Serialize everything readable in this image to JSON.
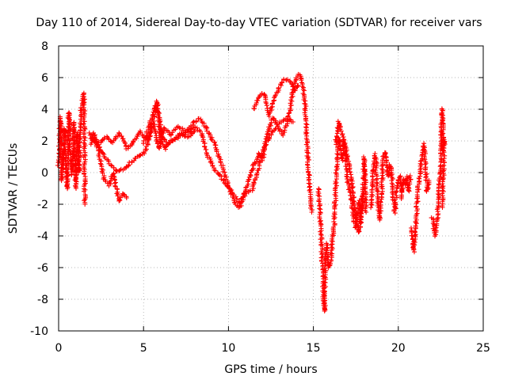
{
  "chart_data": {
    "type": "scatter",
    "title": "Day 110 of 2014, Sidereal Day-to-day VTEC variation (SDTVAR) for receiver vars",
    "xlabel": "GPS time / hours",
    "ylabel": "SDTVAR / TECUs",
    "xlim": [
      0,
      25
    ],
    "ylim": [
      -10,
      8
    ],
    "xticks": [
      0,
      5,
      10,
      15,
      20,
      25
    ],
    "yticks": [
      -10,
      -8,
      -6,
      -4,
      -2,
      0,
      2,
      4,
      6,
      8
    ],
    "xtick_labels": [
      "0",
      "5",
      "10",
      "15",
      "20",
      "25"
    ],
    "ytick_labels": [
      "-10",
      "-8",
      "-6",
      "-4",
      "-2",
      "0",
      "2",
      "4",
      "6",
      "8"
    ],
    "grid": true,
    "marker": "+",
    "marker_color": "#ff0000",
    "series": [
      {
        "name": "vars",
        "segments": [
          [
            [
              0.0,
              0.5
            ],
            [
              0.1,
              3.5
            ],
            [
              0.2,
              -0.5
            ],
            [
              0.35,
              2.8
            ],
            [
              0.5,
              -1.0
            ],
            [
              0.6,
              3.8
            ],
            [
              0.7,
              1.0
            ],
            [
              0.8,
              -0.2
            ],
            [
              0.9,
              3.2
            ],
            [
              1.0,
              -1.0
            ],
            [
              1.1,
              2.5
            ],
            [
              1.2,
              0.0
            ],
            [
              1.3,
              3.5
            ],
            [
              1.4,
              4.5
            ],
            [
              1.5,
              5.0
            ],
            [
              1.55,
              -2.0
            ]
          ],
          [
            [
              1.9,
              1.8
            ],
            [
              2.1,
              2.5
            ],
            [
              2.4,
              1.0
            ],
            [
              2.7,
              -0.5
            ],
            [
              3.0,
              -0.8
            ],
            [
              3.2,
              0.0
            ],
            [
              3.4,
              -1.0
            ],
            [
              3.6,
              -1.8
            ],
            [
              3.8,
              -1.3
            ],
            [
              4.0,
              -1.6
            ]
          ],
          [
            [
              1.9,
              2.2
            ],
            [
              2.3,
              1.8
            ],
            [
              2.8,
              2.3
            ],
            [
              3.2,
              1.9
            ],
            [
              3.6,
              2.5
            ],
            [
              4.0,
              1.5
            ],
            [
              4.4,
              1.9
            ],
            [
              4.8,
              2.6
            ],
            [
              5.2,
              2.1
            ],
            [
              5.6,
              3.0
            ],
            [
              5.9,
              1.5
            ],
            [
              6.2,
              2.8
            ],
            [
              6.6,
              2.4
            ],
            [
              7.0,
              2.9
            ],
            [
              7.5,
              2.6
            ],
            [
              8.0,
              3.2
            ],
            [
              8.3,
              3.4
            ],
            [
              8.6,
              3.0
            ],
            [
              9.0,
              2.2
            ],
            [
              9.3,
              1.5
            ],
            [
              9.6,
              0.5
            ],
            [
              9.9,
              -0.5
            ],
            [
              10.2,
              -1.5
            ],
            [
              10.5,
              -2.1
            ],
            [
              10.7,
              -2.2
            ],
            [
              10.9,
              -1.5
            ],
            [
              11.2,
              -0.5
            ],
            [
              11.5,
              0.5
            ],
            [
              11.8,
              1.2
            ],
            [
              12.0,
              0.8
            ],
            [
              12.3,
              2.5
            ],
            [
              12.6,
              3.5
            ],
            [
              12.9,
              3.0
            ],
            [
              13.2,
              3.3
            ],
            [
              13.5,
              3.4
            ],
            [
              13.8,
              3.2
            ]
          ],
          [
            [
              1.8,
              2.5
            ],
            [
              2.2,
              2.0
            ],
            [
              2.6,
              1.2
            ],
            [
              3.0,
              0.6
            ],
            [
              3.4,
              0.1
            ],
            [
              3.8,
              0.2
            ],
            [
              4.2,
              0.6
            ],
            [
              4.6,
              1.0
            ],
            [
              5.0,
              1.2
            ],
            [
              5.2,
              1.6
            ],
            [
              5.6,
              3.5
            ],
            [
              5.8,
              4.5
            ],
            [
              6.0,
              2.0
            ],
            [
              6.3,
              1.5
            ],
            [
              6.6,
              2.0
            ],
            [
              7.0,
              2.2
            ],
            [
              7.5,
              2.5
            ],
            [
              8.0,
              2.9
            ],
            [
              8.4,
              2.5
            ],
            [
              8.8,
              1.0
            ],
            [
              9.2,
              0.2
            ],
            [
              9.5,
              -0.2
            ],
            [
              9.9,
              -0.8
            ],
            [
              10.2,
              -1.2
            ],
            [
              10.6,
              -1.9
            ],
            [
              11.0,
              -1.4
            ],
            [
              11.4,
              -1.1
            ],
            [
              11.7,
              0.0
            ],
            [
              12.0,
              1.2
            ],
            [
              12.3,
              2.0
            ],
            [
              12.6,
              2.6
            ],
            [
              12.9,
              2.9
            ],
            [
              13.2,
              2.4
            ],
            [
              13.5,
              3.3
            ],
            [
              13.7,
              4.5
            ],
            [
              13.9,
              5.7
            ],
            [
              14.1,
              6.2
            ],
            [
              14.3,
              6.0
            ],
            [
              14.5,
              4.5
            ],
            [
              14.6,
              2.5
            ],
            [
              14.8,
              -1.5
            ],
            [
              14.9,
              -2.5
            ]
          ],
          [
            [
              5.0,
              1.8
            ],
            [
              5.4,
              3.2
            ],
            [
              5.7,
              4.2
            ],
            [
              5.9,
              3.6
            ],
            [
              6.1,
              2.2
            ],
            [
              6.4,
              1.8
            ],
            [
              6.8,
              2.1
            ],
            [
              7.2,
              2.5
            ],
            [
              7.6,
              2.2
            ],
            [
              8.0,
              2.6
            ]
          ],
          [
            [
              11.5,
              4.0
            ],
            [
              11.8,
              4.8
            ],
            [
              12.1,
              5.0
            ],
            [
              12.4,
              3.6
            ],
            [
              12.7,
              4.6
            ],
            [
              13.0,
              5.4
            ],
            [
              13.3,
              5.9
            ],
            [
              13.6,
              5.8
            ],
            [
              13.9,
              5.2
            ],
            [
              14.1,
              5.5
            ]
          ],
          [
            [
              15.3,
              -1.0
            ],
            [
              15.4,
              -3.0
            ],
            [
              15.5,
              -5.0
            ],
            [
              15.6,
              -8.0
            ],
            [
              15.65,
              -8.8
            ],
            [
              15.7,
              -5.5
            ],
            [
              15.8,
              -4.5
            ],
            [
              15.9,
              -6.0
            ],
            [
              16.0,
              -5.8
            ],
            [
              16.1,
              -4.5
            ],
            [
              16.2,
              -3.5
            ],
            [
              16.3,
              -1.5
            ],
            [
              16.4,
              1.0
            ],
            [
              16.5,
              2.2
            ],
            [
              16.6,
              1.5
            ],
            [
              16.7,
              0.8
            ],
            [
              16.8,
              2.0
            ],
            [
              16.9,
              1.2
            ],
            [
              17.0,
              -0.5
            ],
            [
              17.1,
              -1.0
            ],
            [
              17.2,
              -1.5
            ],
            [
              17.3,
              -2.2
            ],
            [
              17.4,
              -3.0
            ],
            [
              17.5,
              -3.5
            ],
            [
              17.6,
              -2.5
            ],
            [
              17.7,
              -1.8
            ],
            [
              17.8,
              -3.2
            ],
            [
              17.9,
              -2.0
            ],
            [
              18.0,
              1.0
            ],
            [
              18.1,
              -2.5
            ]
          ],
          [
            [
              16.3,
              1.8
            ],
            [
              16.5,
              3.2
            ],
            [
              16.7,
              2.4
            ],
            [
              16.9,
              1.5
            ],
            [
              17.1,
              0.5
            ],
            [
              17.3,
              -1.0
            ],
            [
              17.5,
              -2.8
            ],
            [
              17.7,
              -3.8
            ],
            [
              17.9,
              -1.2
            ]
          ],
          [
            [
              18.4,
              -2.2
            ],
            [
              18.5,
              -0.5
            ],
            [
              18.6,
              1.2
            ],
            [
              18.7,
              0.5
            ],
            [
              18.8,
              -1.8
            ],
            [
              18.9,
              -3.0
            ],
            [
              19.0,
              -1.5
            ],
            [
              19.1,
              0.8
            ],
            [
              19.2,
              1.3
            ],
            [
              19.3,
              0.6
            ],
            [
              19.4,
              -0.2
            ],
            [
              19.5,
              0.5
            ],
            [
              19.6,
              0.2
            ],
            [
              19.7,
              -1.5
            ],
            [
              19.8,
              -2.5
            ],
            [
              19.9,
              -1.0
            ],
            [
              20.0,
              -0.5
            ],
            [
              20.1,
              -0.2
            ],
            [
              20.2,
              -1.6
            ],
            [
              20.3,
              -0.4
            ],
            [
              20.4,
              -0.8
            ],
            [
              20.5,
              -0.3
            ],
            [
              20.6,
              -1.2
            ],
            [
              20.7,
              -0.2
            ]
          ],
          [
            [
              20.8,
              -3.5
            ],
            [
              20.9,
              -5.0
            ],
            [
              21.0,
              -4.2
            ],
            [
              21.1,
              -2.0
            ],
            [
              21.2,
              -0.6
            ],
            [
              21.3,
              0.2
            ],
            [
              21.4,
              1.2
            ],
            [
              21.5,
              1.8
            ],
            [
              21.6,
              0.5
            ],
            [
              21.7,
              -1.2
            ],
            [
              21.8,
              -0.5
            ]
          ],
          [
            [
              22.0,
              -2.8
            ],
            [
              22.1,
              -3.5
            ],
            [
              22.2,
              -4.0
            ],
            [
              22.3,
              -2.8
            ],
            [
              22.4,
              -1.0
            ],
            [
              22.5,
              0.4
            ],
            [
              22.55,
              3.5
            ],
            [
              22.6,
              4.0
            ],
            [
              22.65,
              1.5
            ],
            [
              22.7,
              2.2
            ],
            [
              22.6,
              -2.2
            ]
          ]
        ]
      }
    ]
  }
}
